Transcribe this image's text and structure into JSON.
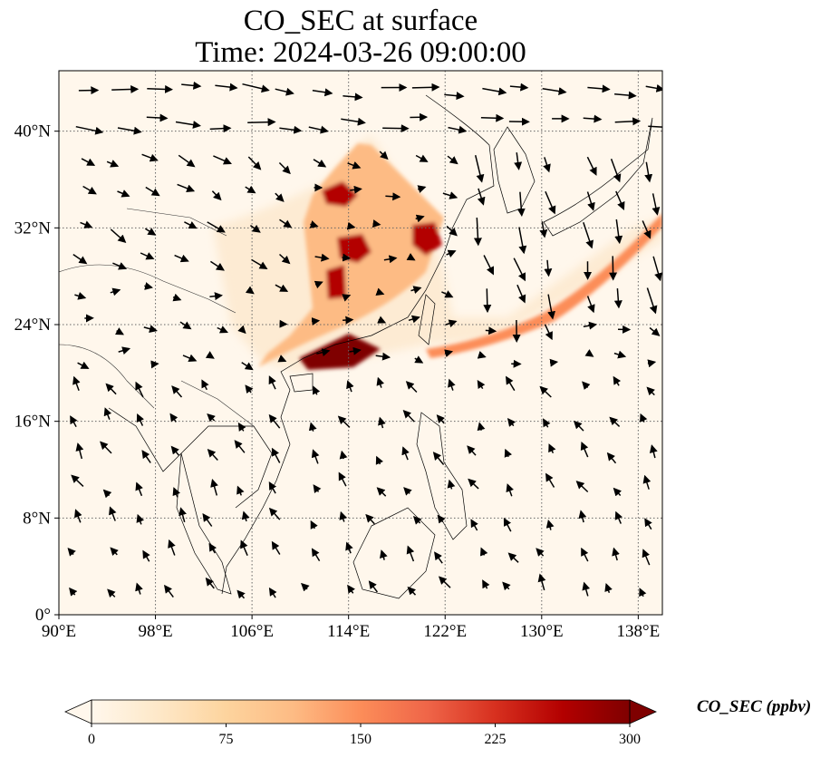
{
  "title": {
    "line1": "CO_SEC at surface",
    "line2": "Time: 2024-03-26 09:00:00"
  },
  "map": {
    "lon_range": [
      90,
      140
    ],
    "lat_range": [
      0,
      45
    ],
    "grid": true,
    "lon_ticks": [
      {
        "value": 90,
        "label": "90°E"
      },
      {
        "value": 98,
        "label": "98°E"
      },
      {
        "value": 106,
        "label": "106°E"
      },
      {
        "value": 114,
        "label": "114°E"
      },
      {
        "value": 122,
        "label": "122°E"
      },
      {
        "value": 130,
        "label": "130°E"
      },
      {
        "value": 138,
        "label": "138°E"
      }
    ],
    "lat_ticks": [
      {
        "value": 0,
        "label": "0°"
      },
      {
        "value": 8,
        "label": "8°N"
      },
      {
        "value": 16,
        "label": "16°N"
      },
      {
        "value": 24,
        "label": "24°N"
      },
      {
        "value": 32,
        "label": "32°N"
      },
      {
        "value": 40,
        "label": "40°N"
      }
    ]
  },
  "colorbar": {
    "label": "CO_SEC (ppbv)",
    "min": 0,
    "max": 300,
    "extend": "both",
    "ticks": [
      {
        "value": 0,
        "label": "0"
      },
      {
        "value": 75,
        "label": "75"
      },
      {
        "value": 150,
        "label": "150"
      },
      {
        "value": 225,
        "label": "225"
      },
      {
        "value": 300,
        "label": "300"
      }
    ],
    "colors": [
      "#fff7ec",
      "#fee8c8",
      "#fdd49e",
      "#fdbb84",
      "#fc8d59",
      "#ef6548",
      "#d7301f",
      "#b30000",
      "#7f0000"
    ]
  }
}
